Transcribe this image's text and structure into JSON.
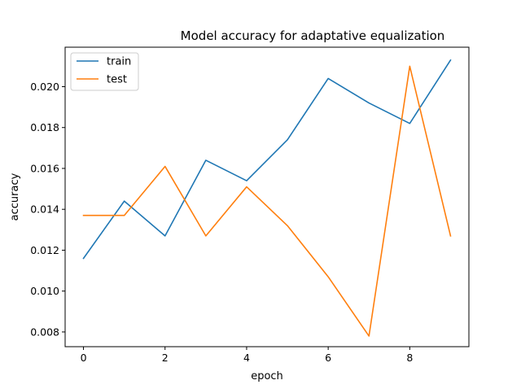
{
  "chart_data": {
    "type": "line",
    "title": "Model accuracy for adaptative equalization",
    "xlabel": "epoch",
    "ylabel": "accuracy",
    "xlim": [
      -0.45,
      9.45
    ],
    "ylim": [
      0.00728,
      0.02193
    ],
    "x_ticks": [
      0,
      2,
      4,
      6,
      8
    ],
    "y_ticks": [
      0.008,
      0.01,
      0.012,
      0.014,
      0.016,
      0.018,
      0.02
    ],
    "x_tick_labels": [
      "0",
      "2",
      "4",
      "6",
      "8"
    ],
    "y_tick_labels": [
      "0.008",
      "0.010",
      "0.012",
      "0.014",
      "0.016",
      "0.018",
      "0.020"
    ],
    "x": [
      0,
      1,
      2,
      3,
      4,
      5,
      6,
      7,
      8,
      9
    ],
    "series": [
      {
        "name": "train",
        "color": "#1f77b4",
        "values": [
          0.0116,
          0.0144,
          0.0127,
          0.0164,
          0.0154,
          0.0174,
          0.0204,
          0.0192,
          0.0182,
          0.0213
        ]
      },
      {
        "name": "test",
        "color": "#ff7f0e",
        "values": [
          0.0137,
          0.0137,
          0.0161,
          0.0127,
          0.0151,
          0.0132,
          0.0107,
          0.0078,
          0.021,
          0.0127
        ]
      }
    ],
    "legend_position": "upper left",
    "grid": false
  }
}
